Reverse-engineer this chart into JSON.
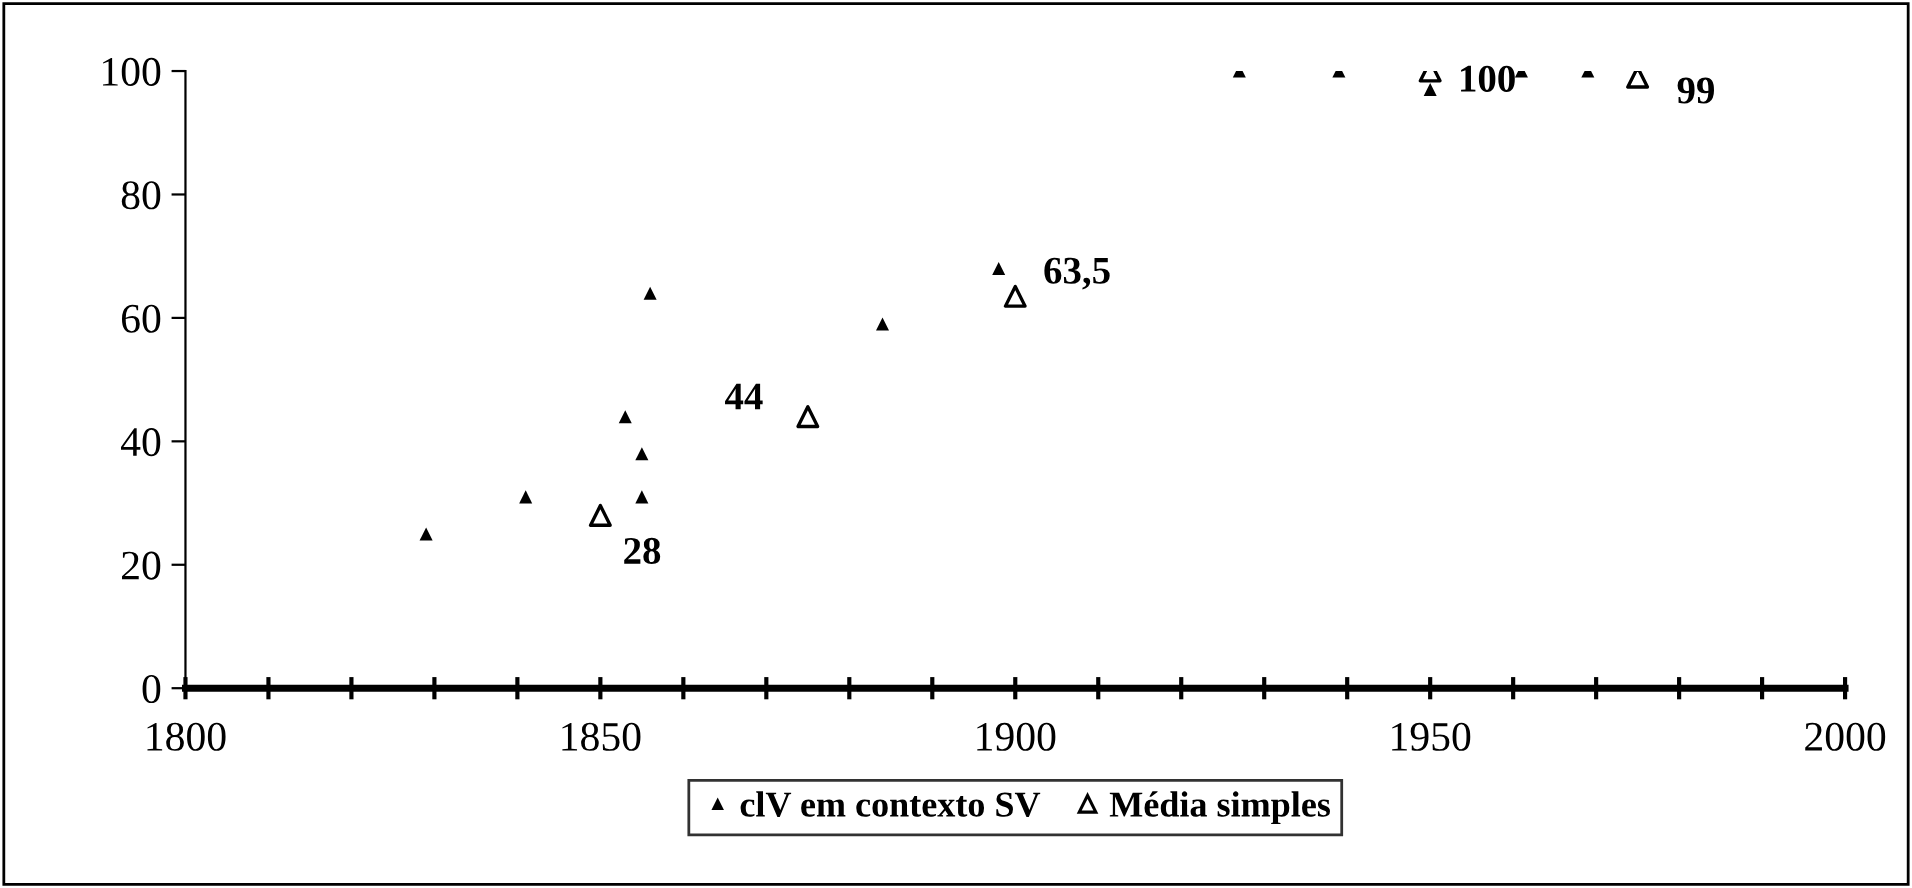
{
  "chart_data": {
    "type": "scatter",
    "xlim": [
      1800,
      2000
    ],
    "xticks": [
      1800,
      1850,
      1900,
      1950,
      2000
    ],
    "ylim": [
      0,
      100
    ],
    "yticks": [
      0,
      20,
      40,
      60,
      80,
      100
    ],
    "grid": false,
    "legend": "bottom",
    "marker": "triangle",
    "series": [
      {
        "name": "clV em contexto SV",
        "color": "#000000",
        "x": [
          1829,
          1841,
          1853,
          1855,
          1855,
          1856,
          1884,
          1898,
          1927,
          1939,
          1950,
          1961,
          1969
        ],
        "values": [
          25,
          31,
          44,
          38,
          31,
          64,
          59,
          68,
          100,
          100,
          97,
          100,
          100
        ]
      },
      {
        "name": "Média simples",
        "color": "#ffffff",
        "x": [
          1850,
          1875,
          1900,
          1950,
          1975
        ],
        "values": [
          28,
          44,
          63.5,
          100,
          99
        ],
        "value_labels": [
          "28",
          "44",
          "63,5",
          "100",
          "99"
        ]
      }
    ]
  }
}
